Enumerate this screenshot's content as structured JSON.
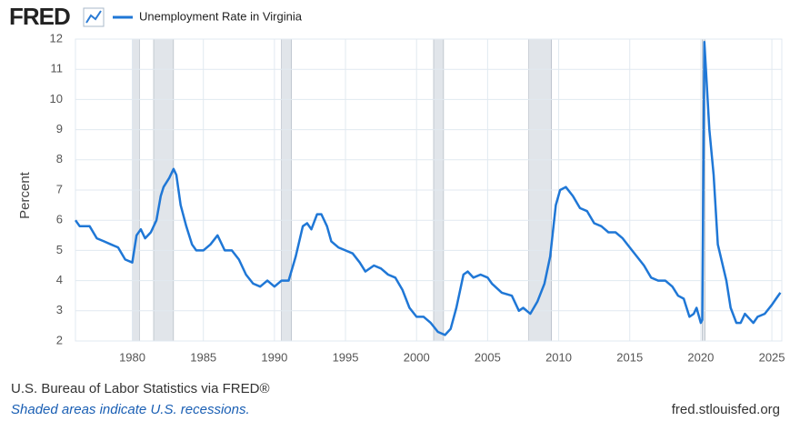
{
  "logo": "FRED",
  "chart_data": {
    "type": "line",
    "y_label": "Percent",
    "x": [
      1976.0,
      1976.3,
      1977.0,
      1977.5,
      1978.0,
      1978.5,
      1979.0,
      1979.5,
      1980.0,
      1980.3,
      1980.6,
      1980.9,
      1981.3,
      1981.7,
      1982.0,
      1982.2,
      1982.6,
      1982.9,
      1983.1,
      1983.4,
      1983.8,
      1984.2,
      1984.5,
      1985.0,
      1985.5,
      1986.0,
      1986.5,
      1987.0,
      1987.5,
      1988.0,
      1988.5,
      1989.0,
      1989.5,
      1990.0,
      1990.5,
      1991.0,
      1991.5,
      1992.0,
      1992.3,
      1992.6,
      1993.0,
      1993.3,
      1993.7,
      1994.0,
      1994.5,
      1995.0,
      1995.5,
      1996.0,
      1996.4,
      1997.0,
      1997.5,
      1998.0,
      1998.5,
      1999.0,
      1999.5,
      2000.0,
      2000.5,
      2001.0,
      2001.5,
      2002.0,
      2002.4,
      2002.8,
      2003.3,
      2003.6,
      2004.0,
      2004.5,
      2005.0,
      2005.3,
      2006.0,
      2006.7,
      2007.2,
      2007.5,
      2008.0,
      2008.5,
      2009.0,
      2009.4,
      2009.8,
      2010.1,
      2010.5,
      2011.0,
      2011.5,
      2012.0,
      2012.5,
      2013.0,
      2013.5,
      2014.0,
      2014.5,
      2015.0,
      2015.5,
      2016.0,
      2016.5,
      2017.0,
      2017.5,
      2018.0,
      2018.4,
      2018.8,
      2019.2,
      2019.5,
      2019.7,
      2020.0,
      2020.1,
      2020.25,
      2020.6,
      2020.9,
      2021.2,
      2021.5,
      2021.8,
      2022.1,
      2022.5,
      2022.8,
      2023.1,
      2023.5,
      2023.7,
      2024.0,
      2024.5,
      2025.0,
      2025.3,
      2025.6
    ],
    "series": [
      {
        "name": "Unemployment Rate in Virginia",
        "color": "#1f77d6",
        "values": [
          6.0,
          5.8,
          5.8,
          5.4,
          5.3,
          5.2,
          5.1,
          4.7,
          4.6,
          5.5,
          5.7,
          5.4,
          5.6,
          6.0,
          6.8,
          7.1,
          7.4,
          7.7,
          7.5,
          6.5,
          5.8,
          5.2,
          5.0,
          5.0,
          5.2,
          5.5,
          5.0,
          5.0,
          4.7,
          4.2,
          3.9,
          3.8,
          4.0,
          3.8,
          4.0,
          4.0,
          4.8,
          5.8,
          5.9,
          5.7,
          6.2,
          6.2,
          5.8,
          5.3,
          5.1,
          5.0,
          4.9,
          4.6,
          4.3,
          4.5,
          4.4,
          4.2,
          4.1,
          3.7,
          3.1,
          2.8,
          2.8,
          2.6,
          2.3,
          2.2,
          2.4,
          3.1,
          4.2,
          4.3,
          4.1,
          4.2,
          4.1,
          3.9,
          3.6,
          3.5,
          3.0,
          3.1,
          2.9,
          3.3,
          3.9,
          4.8,
          6.5,
          7.0,
          7.1,
          6.8,
          6.4,
          6.3,
          5.9,
          5.8,
          5.6,
          5.6,
          5.4,
          5.1,
          4.8,
          4.5,
          4.1,
          4.0,
          4.0,
          3.8,
          3.5,
          3.4,
          2.8,
          2.9,
          3.1,
          2.6,
          2.7,
          11.9,
          9.0,
          7.5,
          5.2,
          4.6,
          4.0,
          3.1,
          2.6,
          2.6,
          2.9,
          2.7,
          2.6,
          2.8,
          2.9,
          3.2,
          3.4,
          3.6
        ]
      }
    ],
    "recessions": [
      [
        1980.0,
        1980.5
      ],
      [
        1981.5,
        1982.9
      ],
      [
        1990.5,
        1991.2
      ],
      [
        2001.2,
        2001.9
      ],
      [
        2007.9,
        2009.5
      ],
      [
        2020.1,
        2020.3
      ]
    ],
    "recession_color": "#e1e5ea",
    "xlim": [
      1976.0,
      2025.7
    ],
    "xticks": [
      1980,
      1985,
      1990,
      1995,
      2000,
      2005,
      2010,
      2015,
      2020,
      2025
    ],
    "ylim": [
      2,
      12
    ],
    "yticks": [
      2,
      3,
      4,
      5,
      6,
      7,
      8,
      9,
      10,
      11,
      12
    ],
    "grid": true
  },
  "footer": {
    "source": "U.S. Bureau of Labor Statistics via FRED®",
    "note": "Shaded areas indicate U.S. recessions.",
    "url": "fred.stlouisfed.org"
  }
}
